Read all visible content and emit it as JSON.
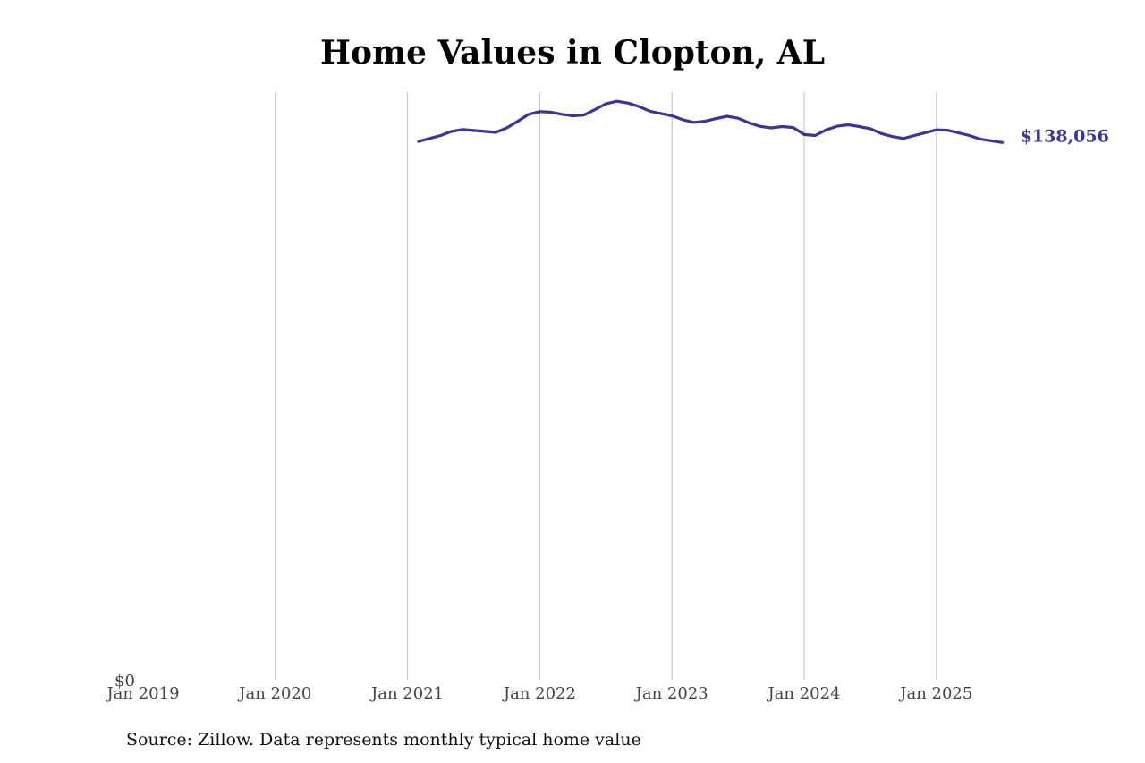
{
  "chart_data": {
    "type": "line",
    "title": "Home Values in Clopton, AL",
    "xlabel": "",
    "ylabel": "",
    "x_ticks": [
      "Jan 2019",
      "Jan 2020",
      "Jan 2021",
      "Jan 2022",
      "Jan 2023",
      "Jan 2024",
      "Jan 2025"
    ],
    "y_ticks": [
      "$0"
    ],
    "xlim": [
      "2019-01",
      "2025-12"
    ],
    "ylim": [
      0,
      151000
    ],
    "grid": "vertical",
    "color": "#3b3597",
    "end_label": "$138,056",
    "series": [
      {
        "x": [
          "2021-02",
          "2021-03",
          "2021-04",
          "2021-05",
          "2021-06",
          "2021-07",
          "2021-08",
          "2021-09",
          "2021-10",
          "2021-11",
          "2021-12",
          "2022-01",
          "2022-02",
          "2022-03",
          "2022-04",
          "2022-05",
          "2022-06",
          "2022-07",
          "2022-08",
          "2022-09",
          "2022-10",
          "2022-11",
          "2022-12",
          "2023-01",
          "2023-02",
          "2023-03",
          "2023-04",
          "2023-05",
          "2023-06",
          "2023-07",
          "2023-08",
          "2023-09",
          "2023-10",
          "2023-11",
          "2023-12",
          "2024-01",
          "2024-02",
          "2024-03",
          "2024-04",
          "2024-05",
          "2024-06",
          "2024-07",
          "2024-08",
          "2024-09",
          "2024-10",
          "2024-11",
          "2024-12",
          "2025-01",
          "2025-02",
          "2025-03",
          "2025-04",
          "2025-05",
          "2025-06",
          "2025-07"
        ],
        "values": [
          138330,
          139100,
          139850,
          140900,
          141400,
          141150,
          140900,
          140650,
          141800,
          143500,
          145300,
          146000,
          145850,
          145300,
          144900,
          145100,
          146500,
          148000,
          148650,
          148200,
          147300,
          146100,
          145500,
          144900,
          143900,
          143200,
          143500,
          144200,
          144800,
          144300,
          143100,
          142200,
          141800,
          142150,
          141900,
          140100,
          139850,
          141300,
          142250,
          142600,
          142150,
          141600,
          140350,
          139600,
          139100,
          139850,
          140600,
          141300,
          141200,
          140550,
          139850,
          138900,
          138500,
          138056
        ]
      }
    ]
  },
  "source": "Source: Zillow. Data represents monthly typical home value"
}
